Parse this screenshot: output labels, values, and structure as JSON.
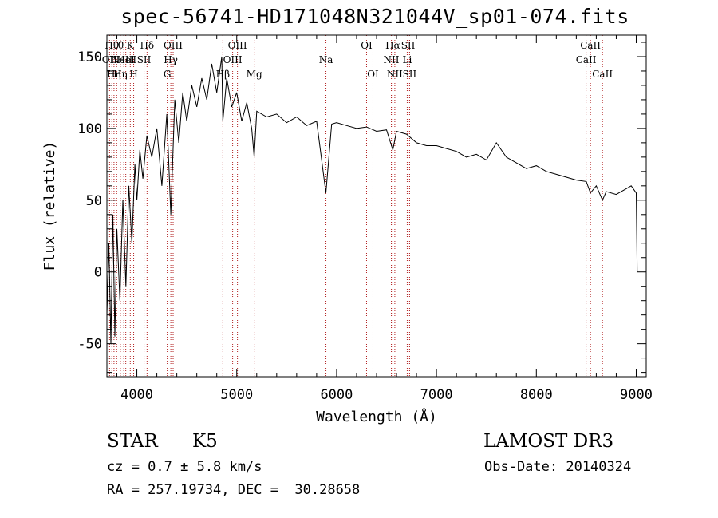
{
  "chart_data": {
    "type": "line",
    "title": "spec-56741-HD171048N321044V_sp01-074.fits",
    "xlabel": "Wavelength (Å)",
    "ylabel": "Flux (relative)",
    "xlim": [
      3700,
      9100
    ],
    "ylim": [
      -73,
      165
    ],
    "xticks": [
      4000,
      5000,
      6000,
      7000,
      8000,
      9000
    ],
    "yticks": [
      -50,
      0,
      50,
      100,
      150
    ],
    "spectrum": {
      "name": "flux",
      "x": [
        3700,
        3720,
        3740,
        3760,
        3780,
        3800,
        3830,
        3860,
        3890,
        3920,
        3950,
        3980,
        4000,
        4030,
        4060,
        4100,
        4150,
        4200,
        4250,
        4300,
        4340,
        4380,
        4420,
        4460,
        4500,
        4550,
        4600,
        4650,
        4700,
        4750,
        4800,
        4850,
        4861,
        4900,
        4950,
        5000,
        5050,
        5100,
        5150,
        5175,
        5200,
        5300,
        5400,
        5500,
        5600,
        5700,
        5800,
        5893,
        5950,
        6000,
        6100,
        6200,
        6300,
        6400,
        6500,
        6563,
        6600,
        6700,
        6800,
        6900,
        7000,
        7100,
        7200,
        7300,
        7400,
        7500,
        7600,
        7700,
        7800,
        7900,
        8000,
        8100,
        8200,
        8300,
        8400,
        8500,
        8542,
        8600,
        8662,
        8700,
        8800,
        8900,
        8950,
        9000,
        9010
      ],
      "y": [
        -30,
        20,
        -50,
        40,
        -45,
        30,
        -20,
        50,
        -10,
        60,
        20,
        75,
        50,
        85,
        65,
        95,
        80,
        100,
        60,
        110,
        40,
        120,
        90,
        125,
        105,
        130,
        115,
        135,
        120,
        145,
        125,
        150,
        105,
        135,
        115,
        125,
        105,
        118,
        100,
        80,
        112,
        108,
        110,
        104,
        108,
        102,
        105,
        55,
        103,
        104,
        102,
        100,
        101,
        98,
        99,
        85,
        98,
        96,
        90,
        88,
        88,
        86,
        84,
        80,
        82,
        78,
        90,
        80,
        76,
        72,
        74,
        70,
        68,
        66,
        64,
        63,
        55,
        60,
        50,
        56,
        54,
        58,
        60,
        55,
        0
      ]
    },
    "lines": [
      {
        "x": 3727,
        "label": "OII",
        "row": 1
      },
      {
        "x": 3750,
        "label": "Hθ",
        "row": 0
      },
      {
        "x": 3771,
        "label": "Hη",
        "row": 2
      },
      {
        "x": 3798,
        "label": "Hθ",
        "row": 0
      },
      {
        "x": 3835,
        "label": "Hη",
        "row": 2
      },
      {
        "x": 3869,
        "label": "NeIII",
        "row": 1
      },
      {
        "x": 3889,
        "label": "HeI",
        "row": 1
      },
      {
        "x": 3934,
        "label": "K",
        "row": 0
      },
      {
        "x": 3968,
        "label": "H",
        "row": 2
      },
      {
        "x": 4072,
        "label": "SII",
        "row": 1
      },
      {
        "x": 4102,
        "label": "Hδ",
        "row": 0
      },
      {
        "x": 4304,
        "label": "G",
        "row": 2
      },
      {
        "x": 4340,
        "label": "Hγ",
        "row": 1
      },
      {
        "x": 4363,
        "label": "OIII",
        "row": 0
      },
      {
        "x": 4861,
        "label": "Hβ",
        "row": 2
      },
      {
        "x": 4959,
        "label": "OIII",
        "row": 1
      },
      {
        "x": 5007,
        "label": "OIII",
        "row": 0
      },
      {
        "x": 5175,
        "label": "Mg",
        "row": 2
      },
      {
        "x": 5893,
        "label": "Na",
        "row": 1
      },
      {
        "x": 6300,
        "label": "OI",
        "row": 0
      },
      {
        "x": 6364,
        "label": "OI",
        "row": 2
      },
      {
        "x": 6548,
        "label": "NII",
        "row": 1
      },
      {
        "x": 6563,
        "label": "Hα",
        "row": 0
      },
      {
        "x": 6583,
        "label": "NII",
        "row": 2
      },
      {
        "x": 6707,
        "label": "Li",
        "row": 1
      },
      {
        "x": 6716,
        "label": "SII",
        "row": 0
      },
      {
        "x": 6731,
        "label": "SII",
        "row": 2
      },
      {
        "x": 8498,
        "label": "CaII",
        "row": 1
      },
      {
        "x": 8542,
        "label": "CaII",
        "row": 0
      },
      {
        "x": 8662,
        "label": "CaII",
        "row": 2
      }
    ]
  },
  "info": {
    "class": "STAR",
    "subclass": "K5",
    "survey": "LAMOST DR3",
    "cz": "cz = 0.7 ± 5.8 km/s",
    "obs_date": "Obs-Date: 20140324",
    "coords": "RA = 257.19734, DEC =  30.28658"
  },
  "colors": {
    "line_marker": "#b22222",
    "spectrum": "#000000"
  }
}
